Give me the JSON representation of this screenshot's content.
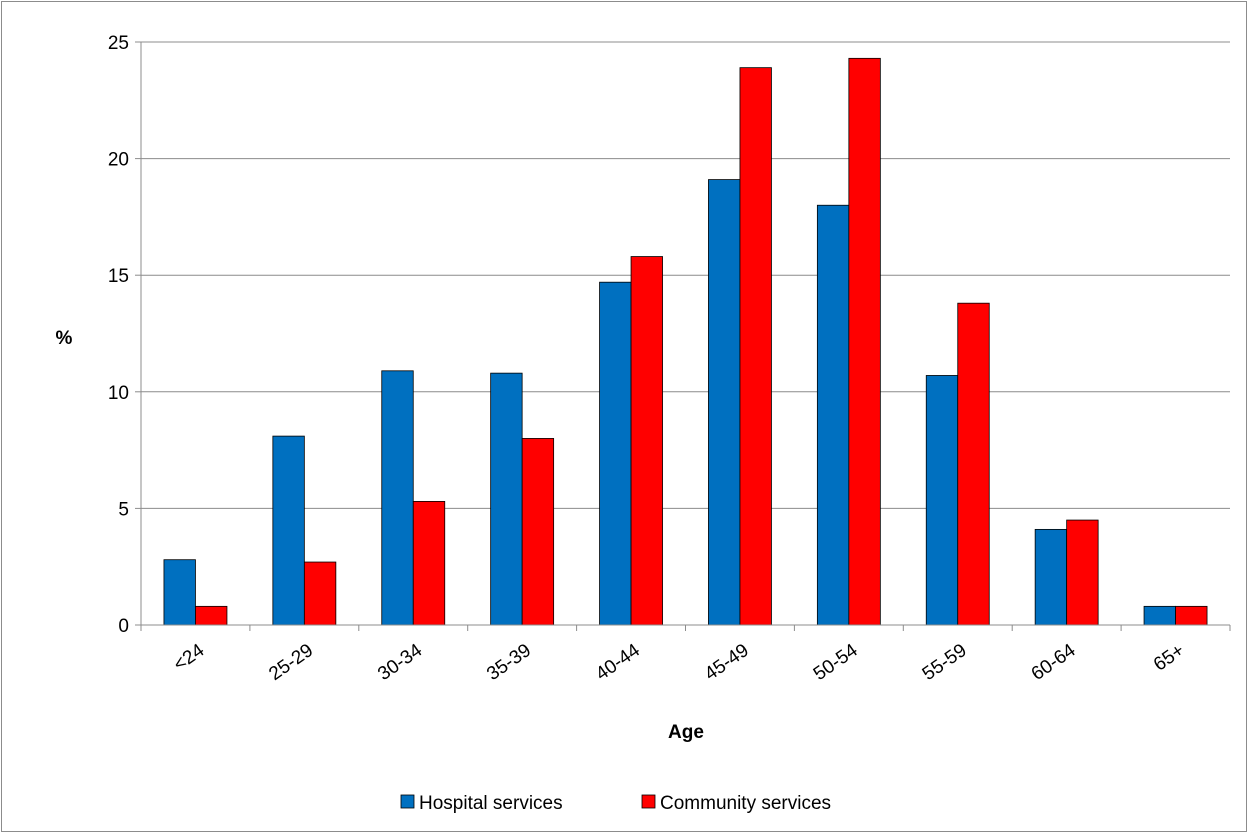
{
  "chart_data": {
    "type": "bar",
    "title": "",
    "xlabel": "Age",
    "ylabel": "%",
    "ylim": [
      0,
      25
    ],
    "yticks": [
      0,
      5,
      10,
      15,
      20,
      25
    ],
    "grid": true,
    "legend_position": "bottom",
    "categories": [
      "<24",
      "25-29",
      "30-34",
      "35-39",
      "40-44",
      "45-49",
      "50-54",
      "55-59",
      "60-64",
      "65+"
    ],
    "series": [
      {
        "name": "Hospital services",
        "color": "#0070c0",
        "values": [
          2.8,
          8.1,
          10.9,
          10.8,
          14.7,
          19.1,
          18.0,
          10.7,
          4.1,
          0.8
        ]
      },
      {
        "name": "Community services",
        "color": "#ff0000",
        "values": [
          0.8,
          2.7,
          5.3,
          8.0,
          15.8,
          23.9,
          24.3,
          13.8,
          4.5,
          0.8
        ]
      }
    ]
  }
}
